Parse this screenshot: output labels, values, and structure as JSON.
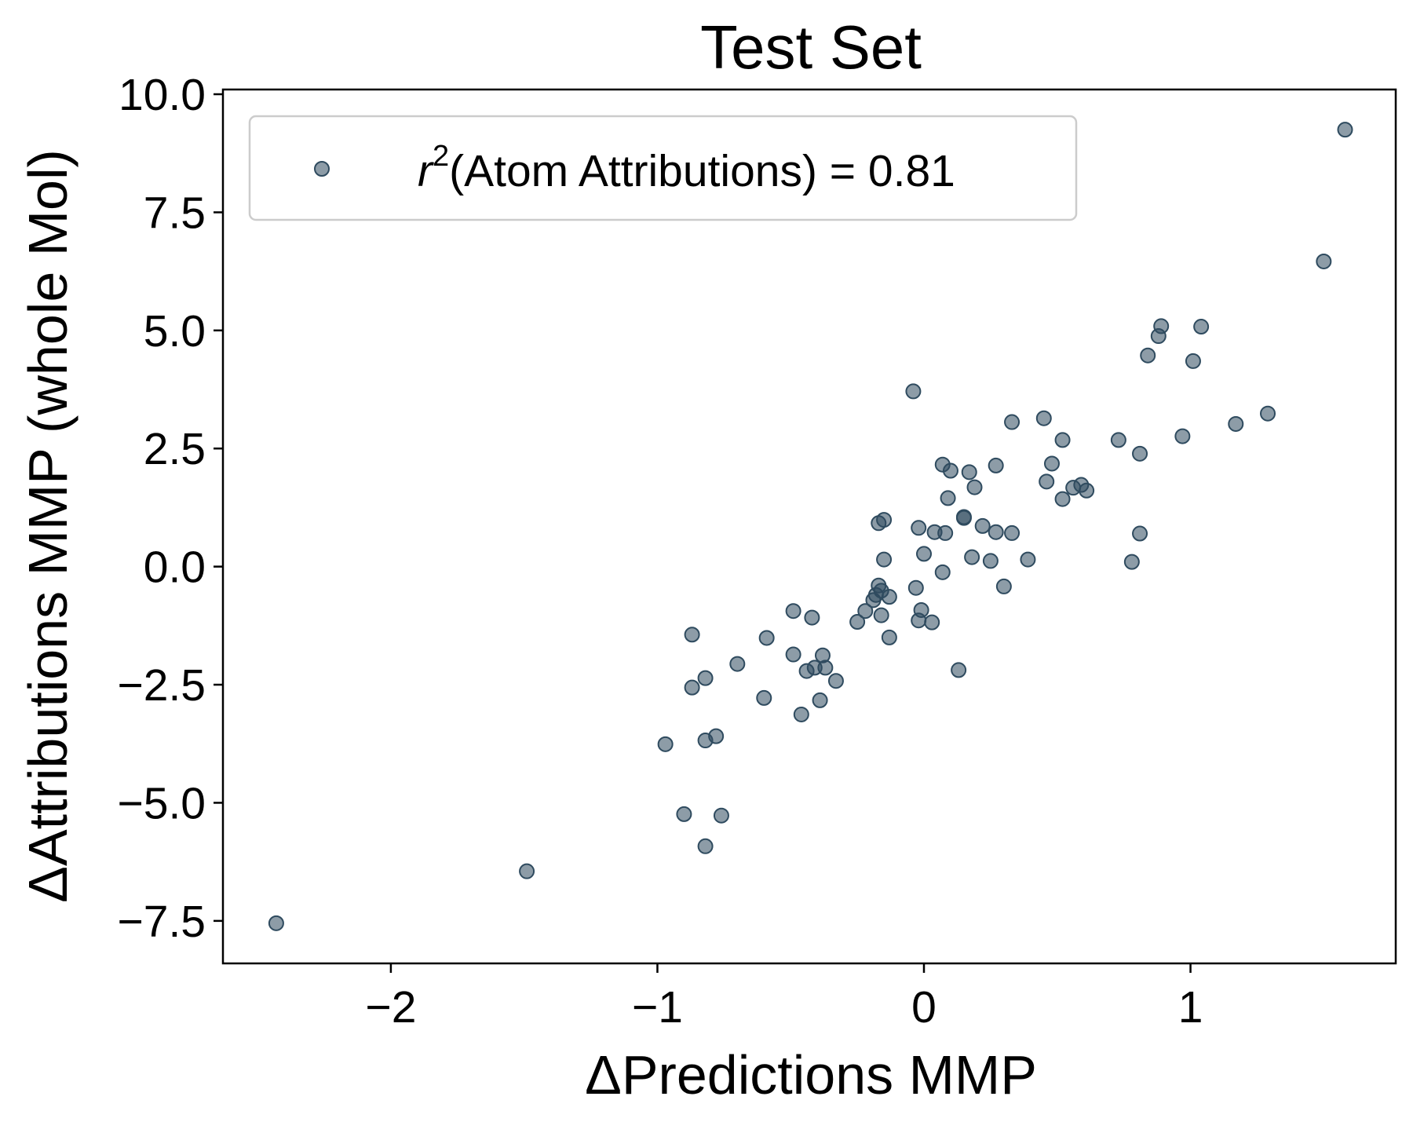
{
  "chart_data": {
    "type": "scatter",
    "title": "Test Set",
    "xlabel": "ΔPredictions MMP",
    "ylabel": "ΔAttributions MMP (whole Mol)",
    "xlim": [
      -2.63,
      1.77
    ],
    "ylim": [
      -8.4,
      10.1
    ],
    "x_ticks": [
      -2,
      -1,
      0,
      1
    ],
    "x_tick_labels": [
      "−2",
      "−1",
      "0",
      "1"
    ],
    "y_ticks": [
      -7.5,
      -5.0,
      -2.5,
      0.0,
      2.5,
      5.0,
      7.5,
      10.0
    ],
    "y_tick_labels": [
      "−7.5",
      "−5.0",
      "−2.5",
      "0.0",
      "2.5",
      "5.0",
      "7.5",
      "10.0"
    ],
    "grid": false,
    "legend_position": "top-left",
    "marker_color": "#2f4b5f",
    "series": [
      {
        "legend": {
          "symbol": "r",
          "superscript": "2",
          "text": "(Atom Attributions) = 0.81"
        },
        "points": [
          [
            -2.43,
            -7.55
          ],
          [
            -1.49,
            -6.45
          ],
          [
            -0.97,
            -3.76
          ],
          [
            -0.9,
            -5.24
          ],
          [
            -0.82,
            -5.92
          ],
          [
            -0.76,
            -5.27
          ],
          [
            -0.87,
            -1.44
          ],
          [
            -0.87,
            -2.56
          ],
          [
            -0.82,
            -2.36
          ],
          [
            -0.82,
            -3.68
          ],
          [
            -0.78,
            -3.59
          ],
          [
            -0.7,
            -2.06
          ],
          [
            -0.59,
            -1.51
          ],
          [
            -0.6,
            -2.78
          ],
          [
            -0.49,
            -0.94
          ],
          [
            -0.49,
            -1.86
          ],
          [
            -0.46,
            -3.13
          ],
          [
            -0.44,
            -2.21
          ],
          [
            -0.42,
            -1.08
          ],
          [
            -0.41,
            -2.14
          ],
          [
            -0.39,
            -2.83
          ],
          [
            -0.38,
            -1.88
          ],
          [
            -0.37,
            -2.14
          ],
          [
            -0.33,
            -2.42
          ],
          [
            -0.25,
            -1.17
          ],
          [
            -0.22,
            -0.94
          ],
          [
            -0.19,
            -0.71
          ],
          [
            -0.18,
            -0.6
          ],
          [
            -0.17,
            -0.4
          ],
          [
            -0.16,
            -0.51
          ],
          [
            -0.16,
            -1.03
          ],
          [
            -0.17,
            0.92
          ],
          [
            -0.15,
            0.99
          ],
          [
            -0.15,
            0.15
          ],
          [
            -0.13,
            -0.64
          ],
          [
            -0.13,
            -1.5
          ],
          [
            -0.04,
            3.71
          ],
          [
            -0.03,
            -0.45
          ],
          [
            -0.02,
            0.82
          ],
          [
            -0.02,
            -1.14
          ],
          [
            -0.01,
            -0.92
          ],
          [
            0.0,
            0.27
          ],
          [
            0.03,
            -1.18
          ],
          [
            0.04,
            0.73
          ],
          [
            0.07,
            -0.12
          ],
          [
            0.08,
            0.71
          ],
          [
            0.07,
            2.16
          ],
          [
            0.09,
            1.45
          ],
          [
            0.1,
            2.03
          ],
          [
            0.13,
            -2.19
          ],
          [
            0.15,
            1.05
          ],
          [
            0.15,
            1.03
          ],
          [
            0.17,
            2.0
          ],
          [
            0.18,
            0.2
          ],
          [
            0.19,
            1.68
          ],
          [
            0.22,
            0.86
          ],
          [
            0.25,
            0.12
          ],
          [
            0.27,
            0.73
          ],
          [
            0.27,
            2.14
          ],
          [
            0.3,
            -0.42
          ],
          [
            0.33,
            0.71
          ],
          [
            0.33,
            3.06
          ],
          [
            0.39,
            0.15
          ],
          [
            0.45,
            3.14
          ],
          [
            0.46,
            1.8
          ],
          [
            0.48,
            2.18
          ],
          [
            0.52,
            2.68
          ],
          [
            0.52,
            1.43
          ],
          [
            0.56,
            1.67
          ],
          [
            0.59,
            1.73
          ],
          [
            0.61,
            1.61
          ],
          [
            0.73,
            2.68
          ],
          [
            0.78,
            0.1
          ],
          [
            0.81,
            2.39
          ],
          [
            0.81,
            0.7
          ],
          [
            0.84,
            4.47
          ],
          [
            0.88,
            4.88
          ],
          [
            0.89,
            5.09
          ],
          [
            0.97,
            2.76
          ],
          [
            1.01,
            4.35
          ],
          [
            1.04,
            5.08
          ],
          [
            1.17,
            3.02
          ],
          [
            1.29,
            3.24
          ],
          [
            1.5,
            6.46
          ],
          [
            1.58,
            9.25
          ]
        ]
      }
    ]
  }
}
